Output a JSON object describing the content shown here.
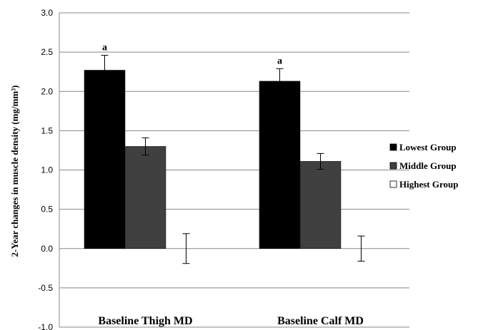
{
  "chart_data": {
    "type": "bar",
    "title": "",
    "xlabel": "",
    "ylabel": "2-Year changes in muscle density (mg/mm³)",
    "ylim": [
      -1.0,
      3.0
    ],
    "yticks": [
      "3.0",
      "2.5",
      "2.0",
      "1.5",
      "1.0",
      "0.5",
      "0.0",
      "-0.5",
      "-1.0"
    ],
    "grid": true,
    "legend_position": "right",
    "categories": [
      "Baseline Thigh MD",
      "Baseline Calf MD"
    ],
    "series": [
      {
        "name": "Lowest Group",
        "color": "#000000",
        "values": [
          2.27,
          2.13
        ],
        "error": [
          0.19,
          0.16
        ],
        "annotations": [
          "a",
          "a"
        ]
      },
      {
        "name": "Middle Group",
        "color": "#404040",
        "values": [
          1.3,
          1.11
        ],
        "error": [
          0.11,
          0.1
        ],
        "annotations": [
          "",
          ""
        ]
      },
      {
        "name": "Highest Group",
        "color": "#ffffff",
        "values": [
          0.0,
          0.0
        ],
        "error": [
          0.19,
          0.16
        ],
        "annotations": [
          "",
          ""
        ]
      }
    ]
  }
}
